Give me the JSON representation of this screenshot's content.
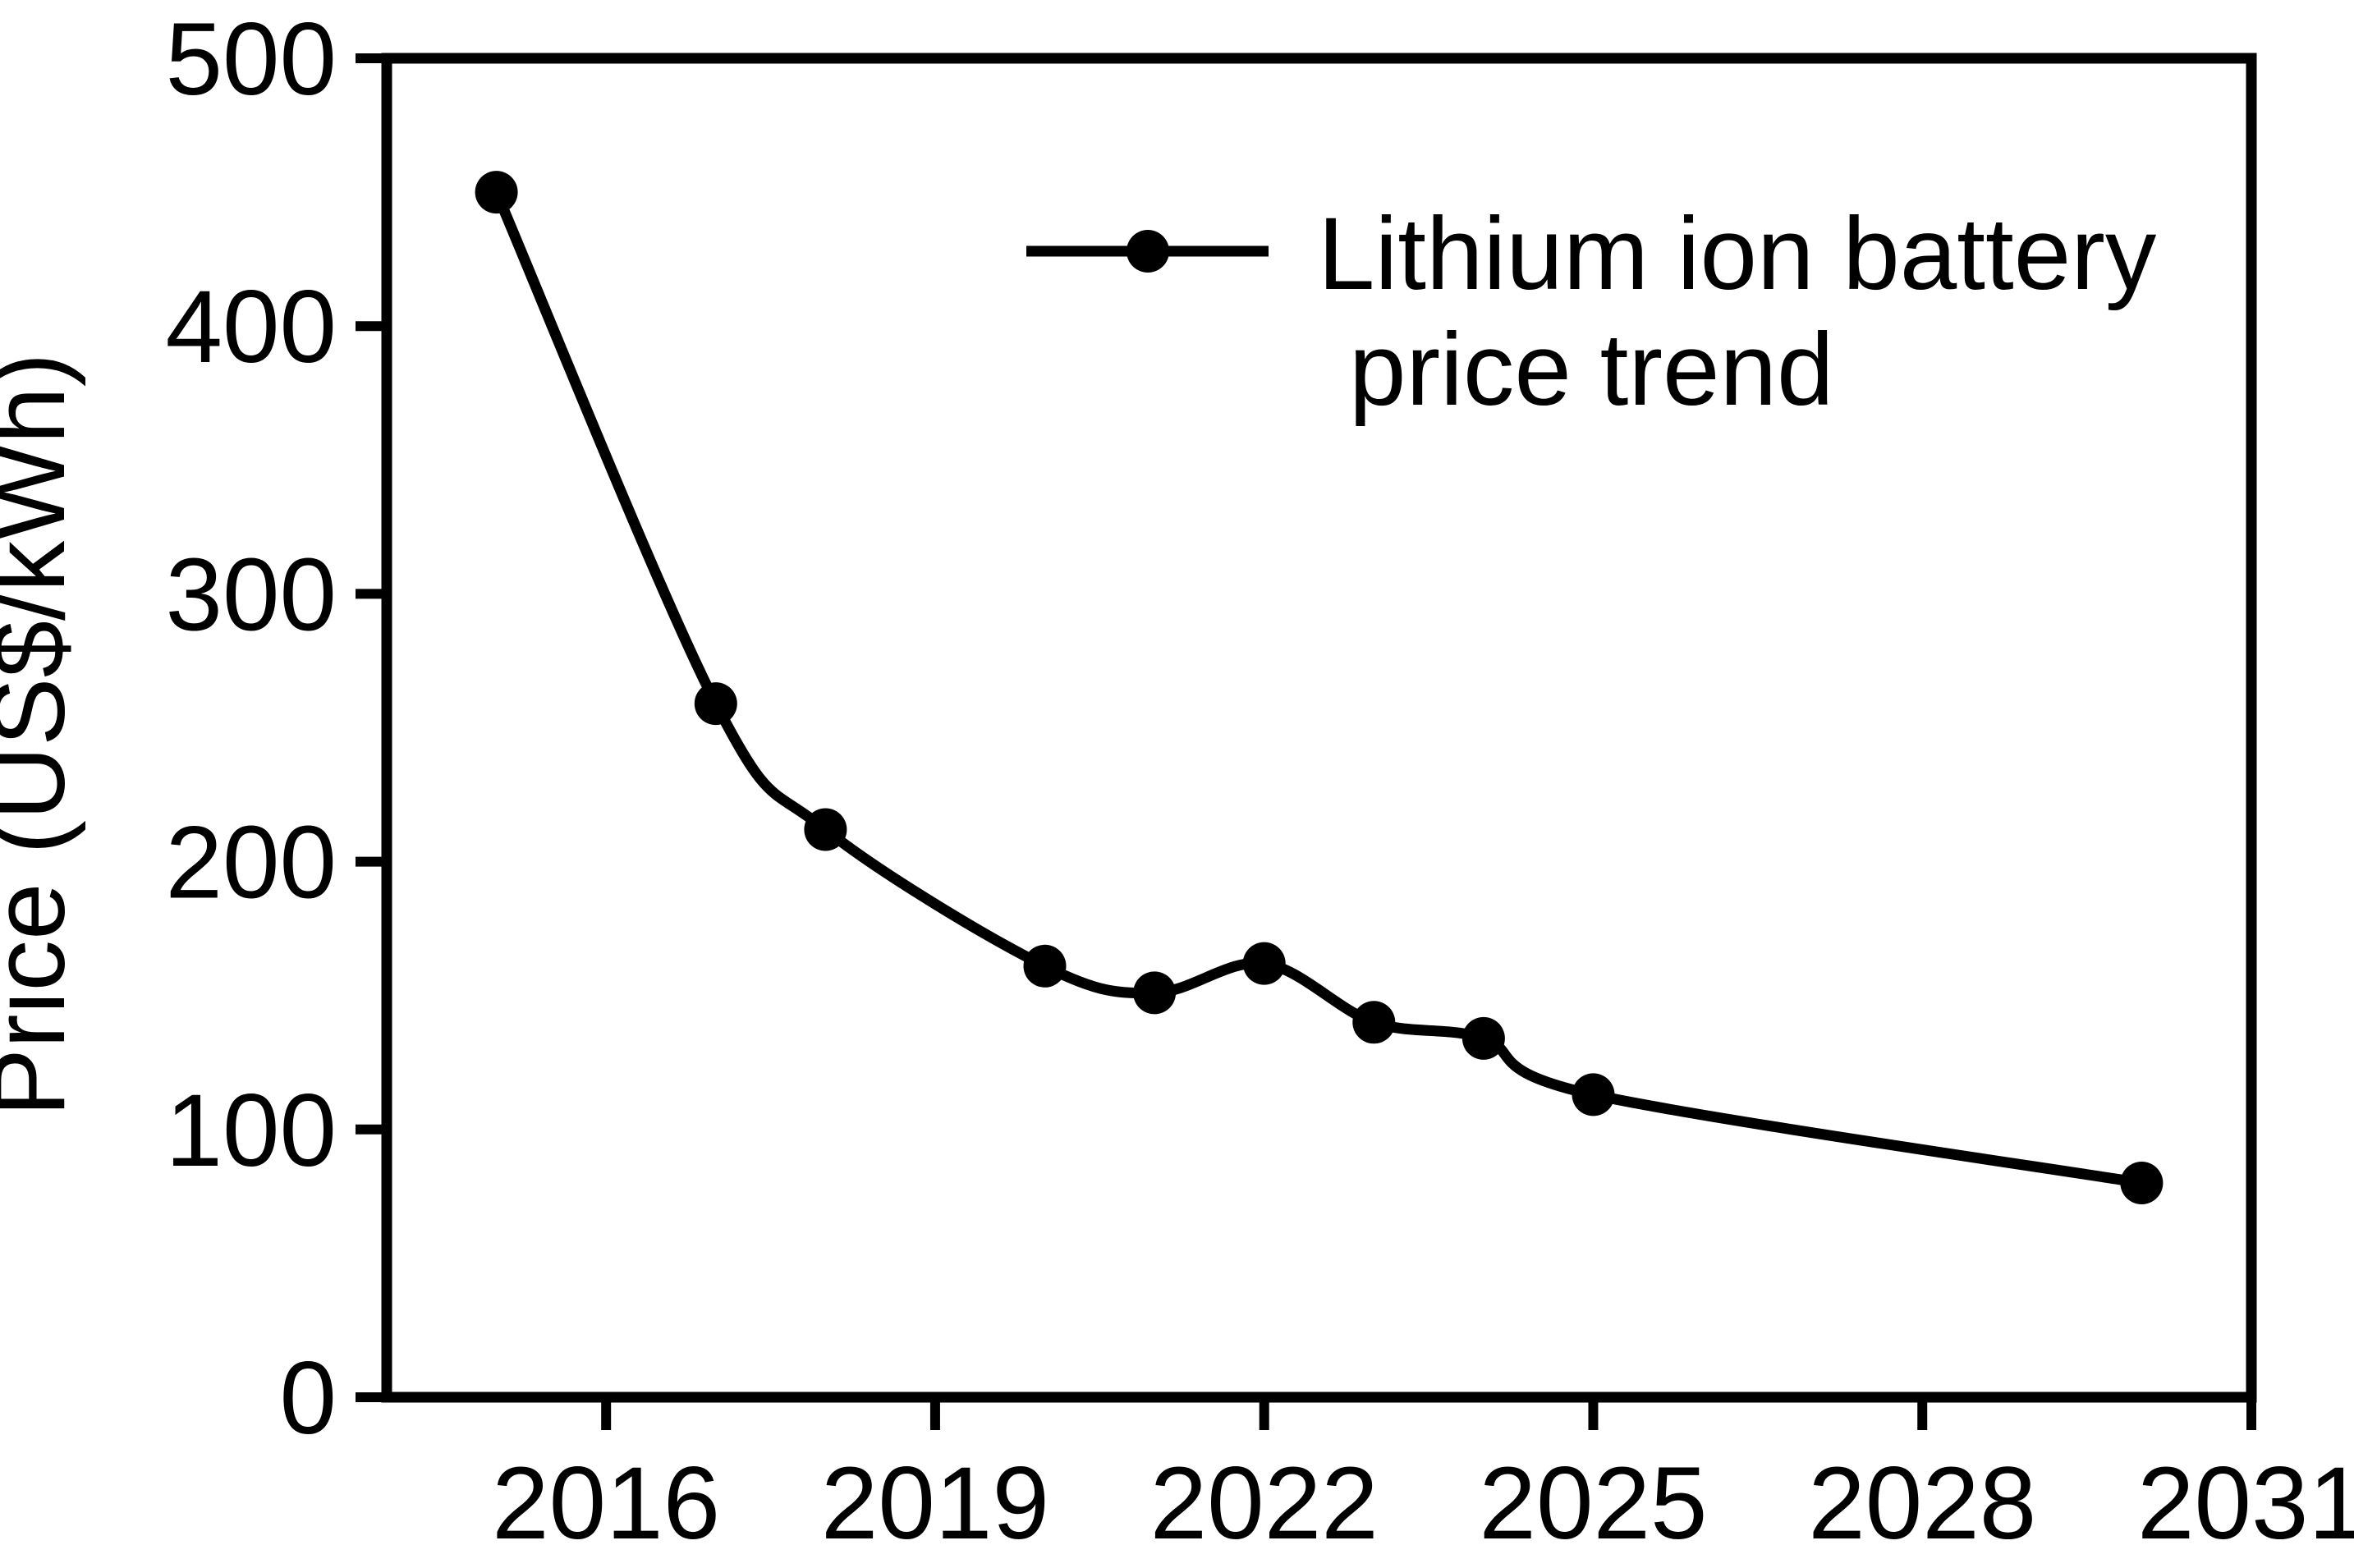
{
  "figure": {
    "background_color": "#ffffff",
    "foreground_color": "#000000"
  },
  "legend": {
    "line1": "Lithium ion battery",
    "line2": "price trend"
  },
  "chart_data": {
    "type": "line",
    "title": "",
    "xlabel": "",
    "ylabel": "Price (US$/kWh)",
    "xlim": [
      2014,
      2031
    ],
    "ylim": [
      0,
      500
    ],
    "x_ticks": [
      2016,
      2019,
      2022,
      2025,
      2028,
      2031
    ],
    "y_ticks": [
      0,
      100,
      200,
      300,
      400,
      500
    ],
    "x_tick_labels": [
      "2016",
      "2019",
      "2022",
      "2025",
      "2028",
      "2031"
    ],
    "y_tick_labels": [
      "0",
      "100",
      "200",
      "300",
      "400",
      "500"
    ],
    "grid": false,
    "legend_position": "upper right, no frame",
    "line_style": "smoothed",
    "series": [
      {
        "name": "Lithium ion battery price trend",
        "color": "#000000",
        "marker": "filled-circle",
        "x": [
          2015,
          2017,
          2018,
          2020,
          2021,
          2022,
          2023,
          2024,
          2025,
          2030
        ],
        "y": [
          450,
          259,
          212,
          161,
          151,
          162,
          140,
          134,
          113,
          80
        ]
      }
    ]
  }
}
